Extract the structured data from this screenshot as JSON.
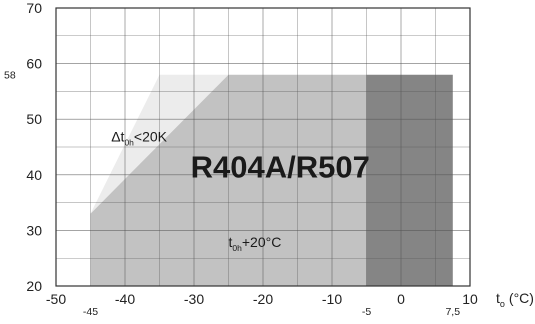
{
  "chart_data": {
    "type": "area",
    "title": "R404A/R507",
    "xlabel": "t",
    "xlabel_subscript": "o",
    "xunit": "(°C)",
    "ylabel": "",
    "xlim": [
      -50,
      10
    ],
    "ylim": [
      20,
      70
    ],
    "grid": true,
    "x_ticks": [
      -50,
      -40,
      -30,
      -20,
      -10,
      0,
      10
    ],
    "x_tick_labels": [
      "-50",
      "-40",
      "-30",
      "-20",
      "-10",
      "0",
      "10"
    ],
    "y_ticks": [
      20,
      30,
      40,
      50,
      60,
      70
    ],
    "y_tick_labels": [
      "20",
      "30",
      "40",
      "50",
      "60",
      "70"
    ],
    "x_extra_ticks": [
      -45,
      -5,
      7.5
    ],
    "x_extra_tick_labels": [
      "-45",
      "-5",
      "7,5"
    ],
    "y_extra_ticks": [
      58
    ],
    "y_extra_tick_labels": [
      "58"
    ],
    "regions": [
      {
        "label_main": "Δt",
        "label_sub": "0h",
        "label_rest": "<20K",
        "color": "#ececec",
        "points": [
          [
            -45,
            33
          ],
          [
            -35,
            58
          ],
          [
            -25,
            58
          ],
          [
            -45,
            33
          ]
        ],
        "label_at": [
          -42,
          46
        ]
      },
      {
        "label_main": "t",
        "label_sub": "0h",
        "label_rest": "+20°C",
        "color": "#c2c2c2",
        "points": [
          [
            -45,
            20
          ],
          [
            -45,
            33
          ],
          [
            -25,
            58
          ],
          [
            -5,
            58
          ],
          [
            -5,
            20
          ]
        ],
        "label_at": [
          -25,
          27
        ]
      },
      {
        "label_main": "",
        "label_sub": "",
        "label_rest": "",
        "color": "#858585",
        "points": [
          [
            -5,
            20
          ],
          [
            -5,
            58
          ],
          [
            7.5,
            58
          ],
          [
            7.5,
            20
          ]
        ],
        "label_at": null
      }
    ],
    "title_at": [
      -17.5,
      39.5
    ]
  }
}
